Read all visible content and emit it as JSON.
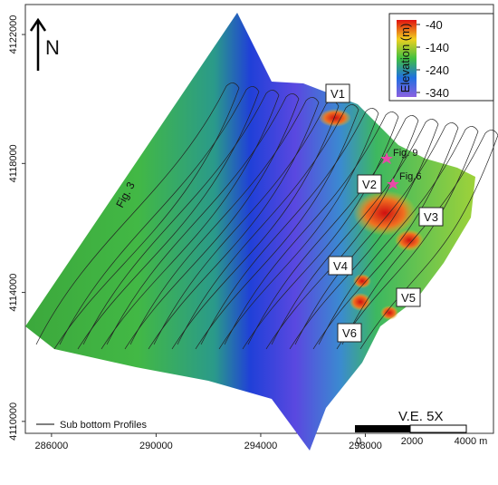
{
  "map": {
    "north_label": "N",
    "xlim": [
      285000,
      302900
    ],
    "ylim": [
      4109630,
      4122930
    ],
    "xticks": [
      286000,
      290000,
      294000,
      298000
    ],
    "yticks": [
      4110000,
      4114000,
      4118000,
      4122000
    ],
    "colorbar": {
      "title": "Elevation (m)",
      "range": [
        -20,
        -360
      ],
      "ticks": [
        -40,
        -140,
        -240,
        -340
      ]
    },
    "labels": [
      "V1",
      "V2",
      "V3",
      "V4",
      "V5",
      "V6"
    ],
    "profile_label": "Fig. 3",
    "figure_markers": [
      "Fig. 9",
      "Fig.6"
    ],
    "vertical_exaggeration": "V.E. 5X",
    "scale_bar": [
      "0",
      "2000",
      "4000 m"
    ],
    "legend": "Sub bottom Profiles"
  }
}
